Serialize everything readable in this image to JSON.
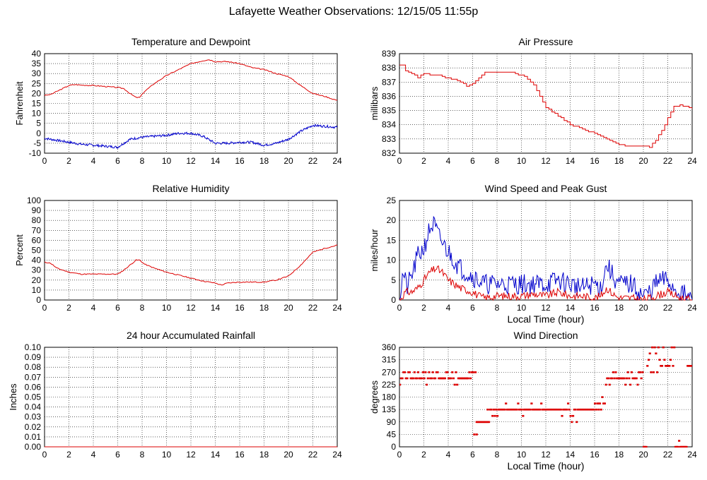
{
  "title": "Lafayette Weather Observations: 12/15/05 11:55p",
  "colors": {
    "red": "#dd0000",
    "blue": "#0000cc",
    "grid": "#000000",
    "frame": "#000000"
  },
  "chart_data": [
    {
      "id": "temperature",
      "type": "line",
      "title": "Temperature and Dewpoint",
      "xlabel": "",
      "ylabel": "Fahrenheit",
      "xlim": [
        0,
        24
      ],
      "ylim": [
        -10,
        40
      ],
      "xticks": [
        0,
        2,
        4,
        6,
        8,
        10,
        12,
        14,
        16,
        18,
        20,
        22,
        24
      ],
      "yticks": [
        -10,
        -5,
        0,
        5,
        10,
        15,
        20,
        25,
        30,
        35,
        40
      ],
      "grid": true,
      "series": [
        {
          "color": "#dd0000",
          "noise": 0.25,
          "seed": 3,
          "step": 0.1,
          "x": [
            0,
            0.5,
            1,
            1.5,
            2,
            2.5,
            3,
            4,
            5,
            6,
            6.5,
            7,
            7.5,
            7.8,
            8.2,
            9,
            10,
            11,
            12,
            13,
            13.5,
            14,
            15,
            16,
            17,
            18,
            19,
            20,
            21,
            22,
            23,
            24
          ],
          "y": [
            19,
            19.5,
            21,
            22.5,
            24,
            24.5,
            24.2,
            24,
            23.5,
            23,
            22.5,
            20,
            18,
            18,
            21,
            25,
            29,
            32,
            35,
            36.5,
            37,
            36,
            36,
            35,
            33,
            32,
            30,
            28.5,
            24,
            20,
            18.5,
            16.5
          ]
        },
        {
          "color": "#0000cc",
          "noise": 0.6,
          "seed": 7,
          "step": 0.05,
          "x": [
            0,
            1,
            2,
            3,
            4,
            5,
            6,
            6.5,
            7,
            8,
            9,
            10,
            11,
            12,
            13,
            14,
            15,
            16,
            17,
            18,
            19,
            20,
            20.5,
            21,
            22,
            23,
            24
          ],
          "y": [
            -2.5,
            -3.5,
            -4.5,
            -5.5,
            -6,
            -6.5,
            -7,
            -5,
            -3,
            -2,
            -1.5,
            -1,
            0,
            0,
            -1.5,
            -5,
            -5,
            -4.5,
            -4.5,
            -6,
            -5,
            -3,
            -1,
            1,
            4,
            3.5,
            3
          ]
        }
      ]
    },
    {
      "id": "pressure",
      "type": "line",
      "title": "Air Pressure",
      "xlabel": "",
      "ylabel": "millibars",
      "xlim": [
        0,
        24
      ],
      "ylim": [
        832,
        839
      ],
      "xticks": [
        0,
        2,
        4,
        6,
        8,
        10,
        12,
        14,
        16,
        18,
        20,
        22,
        24
      ],
      "yticks": [
        832,
        833,
        834,
        835,
        836,
        837,
        838,
        839
      ],
      "grid": true,
      "series": [
        {
          "color": "#dd0000",
          "noise": 0.0,
          "seed": 1,
          "step": 0.25,
          "quantize": 0.1,
          "x": [
            0,
            0.3,
            0.5,
            1,
            1.5,
            2,
            3,
            4,
            5,
            5.5,
            6,
            6.5,
            7,
            8,
            9,
            10,
            10.5,
            11,
            11.5,
            12,
            13,
            14,
            15,
            16,
            17,
            18,
            19,
            20,
            20.5,
            21,
            21.5,
            22,
            22.5,
            23,
            24
          ],
          "y": [
            838.2,
            838.2,
            837.8,
            837.6,
            837.3,
            837.6,
            837.5,
            837.3,
            837.0,
            836.7,
            836.9,
            837.3,
            837.7,
            837.7,
            837.7,
            837.5,
            837.2,
            836.8,
            836.0,
            835.2,
            834.6,
            834.0,
            833.7,
            833.4,
            833.0,
            832.6,
            832.5,
            832.5,
            832.4,
            832.9,
            833.6,
            834.5,
            835.3,
            835.4,
            835.1
          ]
        }
      ]
    },
    {
      "id": "humidity",
      "type": "line",
      "title": "Relative Humidity",
      "xlabel": "",
      "ylabel": "Percent",
      "xlim": [
        0,
        24
      ],
      "ylim": [
        0,
        100
      ],
      "xticks": [
        0,
        2,
        4,
        6,
        8,
        10,
        12,
        14,
        16,
        18,
        20,
        22,
        24
      ],
      "yticks": [
        0,
        10,
        20,
        30,
        40,
        50,
        60,
        70,
        80,
        90,
        100
      ],
      "grid": true,
      "series": [
        {
          "color": "#dd0000",
          "noise": 0.5,
          "seed": 11,
          "step": 0.1,
          "x": [
            0,
            0.5,
            1,
            2,
            3,
            4,
            5,
            6,
            6.5,
            7,
            7.5,
            7.8,
            8.2,
            9,
            10,
            11,
            12,
            13,
            14,
            14.5,
            15,
            16,
            17,
            18,
            19,
            20,
            21,
            22,
            23,
            24
          ],
          "y": [
            38,
            37,
            32,
            28,
            26,
            26,
            26,
            26,
            30,
            35,
            40,
            40,
            36,
            32,
            28,
            25,
            22,
            19,
            17,
            15,
            17,
            18,
            18,
            18,
            20,
            24,
            35,
            48,
            52,
            55
          ]
        }
      ]
    },
    {
      "id": "wind",
      "type": "line",
      "title": "Wind Speed and Peak Gust",
      "xlabel": "Local Time (hour)",
      "ylabel": "miles/hour",
      "xlim": [
        0,
        24
      ],
      "ylim": [
        0,
        25
      ],
      "xticks": [
        0,
        2,
        4,
        6,
        8,
        10,
        12,
        14,
        16,
        18,
        20,
        22,
        24
      ],
      "yticks": [
        0,
        5,
        10,
        15,
        20,
        25
      ],
      "grid": true,
      "series": [
        {
          "color": "#0000cc",
          "noise": 2.6,
          "seed": 21,
          "step": 0.08,
          "clampMin": 0,
          "x": [
            0,
            0.3,
            0.6,
            1,
            1.5,
            2,
            2.5,
            2.8,
            3.2,
            3.8,
            4.5,
            5,
            6,
            7,
            8,
            9,
            10,
            11,
            12,
            13,
            14,
            15,
            16,
            16.5,
            17,
            17.5,
            18,
            19,
            20,
            20.5,
            21,
            21.5,
            22,
            22.5,
            23,
            23.5,
            24
          ],
          "y": [
            0,
            7,
            3,
            6,
            11,
            13,
            18,
            19,
            16,
            13,
            10,
            8,
            6,
            4,
            4,
            4,
            4,
            4,
            4,
            5,
            4,
            3,
            4,
            3,
            9,
            6,
            4,
            4,
            1,
            2,
            4,
            5,
            5,
            3,
            2,
            1,
            0
          ]
        },
        {
          "color": "#dd0000",
          "noise": 1.0,
          "seed": 31,
          "step": 0.08,
          "clampMin": 0,
          "x": [
            0,
            0.5,
            1,
            1.5,
            2,
            2.5,
            3,
            3.5,
            4,
            5,
            6,
            6.5,
            7,
            8,
            9,
            10,
            11,
            12,
            13,
            14,
            15,
            16,
            16.5,
            17,
            17.5,
            18,
            19,
            20,
            21,
            22,
            23,
            24
          ],
          "y": [
            0,
            2,
            2,
            3,
            5,
            7,
            8,
            7,
            5,
            3,
            2,
            1,
            0.5,
            1,
            1,
            1,
            1.5,
            1,
            2,
            1,
            1,
            0.5,
            1,
            3,
            1.5,
            0.5,
            0.5,
            0,
            1,
            2,
            0.5,
            0
          ]
        }
      ]
    },
    {
      "id": "rainfall",
      "type": "line",
      "title": "24 hour Accumulated Rainfall",
      "xlabel": "",
      "ylabel": "Inches",
      "xlim": [
        0,
        24
      ],
      "ylim": [
        0,
        0.1
      ],
      "xticks": [
        0,
        2,
        4,
        6,
        8,
        10,
        12,
        14,
        16,
        18,
        20,
        22,
        24
      ],
      "yticks": [
        0.0,
        0.01,
        0.02,
        0.03,
        0.04,
        0.05,
        0.06,
        0.07,
        0.08,
        0.09,
        0.1
      ],
      "ytick_labels": [
        "0.00",
        "0.01",
        "0.02",
        "0.03",
        "0.04",
        "0.05",
        "0.06",
        "0.07",
        "0.08",
        "0.09",
        "0.10"
      ],
      "grid": true,
      "series": [
        {
          "color": "#dd0000",
          "noise": 0,
          "seed": 0,
          "step": 0.5,
          "x": [
            0,
            24
          ],
          "y": [
            0,
            0
          ]
        }
      ]
    },
    {
      "id": "direction",
      "type": "scatter",
      "title": "Wind Direction",
      "xlabel": "Local Time (hour)",
      "ylabel": "degrees",
      "xlim": [
        0,
        24
      ],
      "ylim": [
        0,
        360
      ],
      "xticks": [
        0,
        2,
        4,
        6,
        8,
        10,
        12,
        14,
        16,
        18,
        20,
        22,
        24
      ],
      "yticks": [
        0,
        45,
        90,
        135,
        180,
        225,
        270,
        315,
        360
      ],
      "grid": true,
      "series": [
        {
          "color": "#dd0000",
          "segments": [
            {
              "x0": 0,
              "x1": 6,
              "values": [
                248,
                270,
                225
              ],
              "weights": [
                0.6,
                0.3,
                0.1
              ]
            },
            {
              "x0": 6,
              "x1": 6.3,
              "values": [
                270,
                45,
                360
              ],
              "weights": [
                0.4,
                0.4,
                0.2
              ]
            },
            {
              "x0": 6.3,
              "x1": 7.2,
              "values": [
                90
              ],
              "weights": [
                1
              ]
            },
            {
              "x0": 7.2,
              "x1": 7.9,
              "values": [
                90,
                112,
                135
              ],
              "weights": [
                0.3,
                0.3,
                0.4
              ]
            },
            {
              "x0": 7.9,
              "x1": 16.3,
              "values": [
                135,
                112,
                157,
                90,
                180
              ],
              "weights": [
                0.8,
                0.06,
                0.06,
                0.04,
                0.04
              ]
            },
            {
              "x0": 16.3,
              "x1": 16.9,
              "values": [
                157,
                180,
                135,
                0
              ],
              "weights": [
                0.4,
                0.3,
                0.2,
                0.1
              ]
            },
            {
              "x0": 16.9,
              "x1": 20.0,
              "values": [
                248,
                225,
                270
              ],
              "weights": [
                0.6,
                0.2,
                0.2
              ]
            },
            {
              "x0": 20.0,
              "x1": 20.3,
              "values": [
                0
              ],
              "weights": [
                1
              ]
            },
            {
              "x0": 20.3,
              "x1": 22.6,
              "values": [
                293,
                315,
                270,
                360,
                338
              ],
              "weights": [
                0.5,
                0.2,
                0.1,
                0.1,
                0.1
              ]
            },
            {
              "x0": 22.6,
              "x1": 23.6,
              "values": [
                0,
                22
              ],
              "weights": [
                0.8,
                0.2
              ]
            },
            {
              "x0": 23.6,
              "x1": 24,
              "values": [
                293
              ],
              "weights": [
                1
              ]
            }
          ],
          "step": 0.1,
          "seed": 41
        }
      ]
    }
  ]
}
